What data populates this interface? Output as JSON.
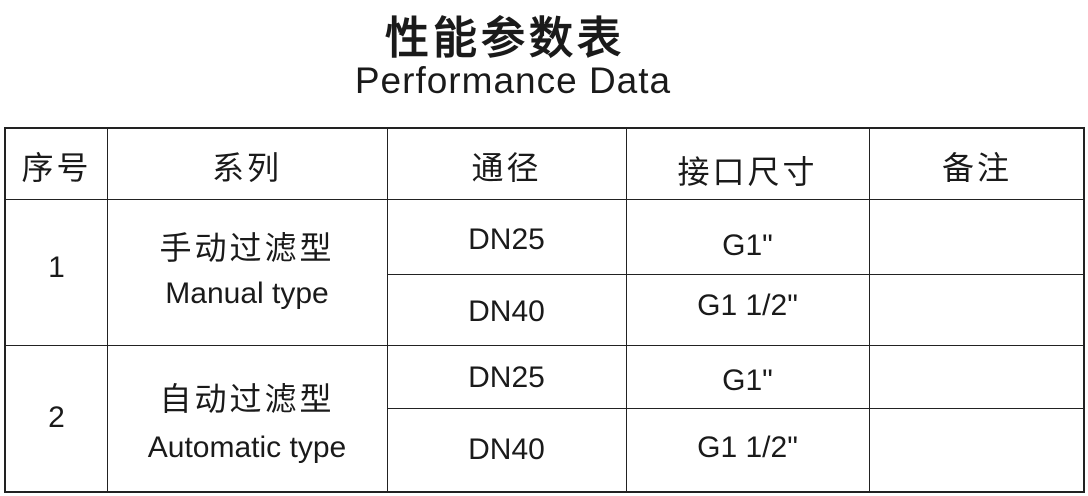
{
  "title_cn": "性能参数表",
  "title_en": "Performance Data",
  "headers": [
    "序号",
    "系列",
    "通径",
    "接口尺寸",
    "备注"
  ],
  "groups": [
    {
      "no": "1",
      "series_cn": "手动过滤型",
      "series_en": "Manual type",
      "rows": [
        {
          "dn": "DN25",
          "size": "G1\"",
          "note": ""
        },
        {
          "dn": "DN40",
          "size": "G1 1/2\"",
          "note": ""
        }
      ]
    },
    {
      "no": "2",
      "series_cn": "自动过滤型",
      "series_en": "Automatic type",
      "rows": [
        {
          "dn": "DN25",
          "size": "G1\"",
          "note": ""
        },
        {
          "dn": "DN40",
          "size": "G1 1/2\"",
          "note": ""
        }
      ]
    }
  ]
}
